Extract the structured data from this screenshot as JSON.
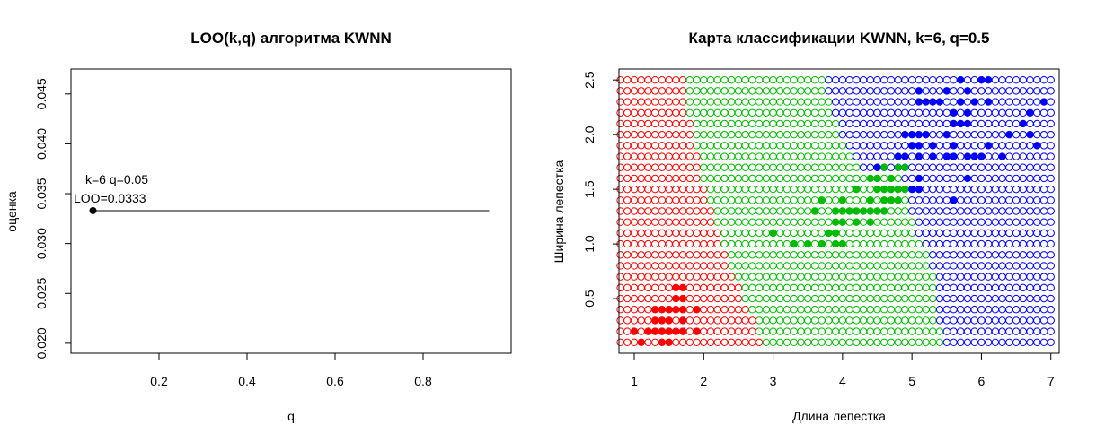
{
  "chart_data": [
    {
      "type": "line",
      "title": "LOO(k,q) алгоритма KWNN",
      "xlabel": "q",
      "ylabel": "оценка",
      "xlim": [
        0.0,
        1.0
      ],
      "ylim": [
        0.019,
        0.0475
      ],
      "x_ticks": [
        "0.2",
        "0.4",
        "0.6",
        "0.8"
      ],
      "y_ticks": [
        "0.020",
        "0.025",
        "0.030",
        "0.035",
        "0.040",
        "0.045"
      ],
      "series": [
        {
          "x": [
            0.05,
            0.95
          ],
          "y": [
            0.0333,
            0.0333
          ]
        }
      ],
      "highlight_point": {
        "x": 0.05,
        "y": 0.0333
      },
      "annotation": [
        "k=6 q=0.05",
        "LOO=0.0333"
      ]
    },
    {
      "type": "scatter",
      "title": "Карта классификации KWNN, k=6, q=0.5",
      "xlabel": "Длина лепестка",
      "ylabel": "Ширина лепестка",
      "xlim": [
        0.78,
        7.12
      ],
      "ylim": [
        0.0,
        2.6
      ],
      "x_ticks": [
        "1",
        "2",
        "3",
        "4",
        "5",
        "6",
        "7"
      ],
      "y_ticks": [
        "0.5",
        "1.0",
        "1.5",
        "2.0",
        "2.5"
      ],
      "grid": {
        "x_from": 0.8,
        "x_to": 7.0,
        "x_step": 0.1,
        "y_from": 0.1,
        "y_to": 2.5,
        "y_step": 0.1
      },
      "class_colors": {
        "setosa": "#ff0000",
        "versicolor": "#00bb00",
        "virginica": "#0000ff"
      },
      "map_note": "open circles on a grid are colored by predicted class; filled dots are the training points",
      "boundaries": [
        {
          "y": 0.1,
          "sv": 2.85,
          "vv": 5.45
        },
        {
          "y": 0.2,
          "sv": 2.8,
          "vv": 5.45
        },
        {
          "y": 0.3,
          "sv": 2.75,
          "vv": 5.4
        },
        {
          "y": 0.4,
          "sv": 2.7,
          "vv": 5.4
        },
        {
          "y": 0.5,
          "sv": 2.6,
          "vv": 5.35
        },
        {
          "y": 0.6,
          "sv": 2.55,
          "vv": 5.35
        },
        {
          "y": 0.7,
          "sv": 2.5,
          "vv": 5.35
        },
        {
          "y": 0.8,
          "sv": 2.4,
          "vv": 5.3
        },
        {
          "y": 0.9,
          "sv": 2.35,
          "vv": 5.25
        },
        {
          "y": 1.0,
          "sv": 2.3,
          "vv": 5.15
        },
        {
          "y": 1.1,
          "sv": 2.25,
          "vv": 5.1
        },
        {
          "y": 1.2,
          "sv": 2.2,
          "vv": 5.05
        },
        {
          "y": 1.3,
          "sv": 2.15,
          "vv": 5.0
        },
        {
          "y": 1.4,
          "sv": 2.1,
          "vv": 4.95
        },
        {
          "y": 1.5,
          "sv": 2.05,
          "vv": 4.95
        },
        {
          "y": 1.6,
          "sv": 2.0,
          "vv": 4.85
        },
        {
          "y": 1.7,
          "sv": 1.95,
          "vv": 4.3
        },
        {
          "y": 1.8,
          "sv": 1.95,
          "vv": 4.2
        },
        {
          "y": 1.9,
          "sv": 1.9,
          "vv": 4.1
        },
        {
          "y": 2.0,
          "sv": 1.85,
          "vv": 4.0
        },
        {
          "y": 2.1,
          "sv": 1.85,
          "vv": 3.95
        },
        {
          "y": 2.2,
          "sv": 1.8,
          "vv": 3.9
        },
        {
          "y": 2.3,
          "sv": 1.8,
          "vv": 3.85
        },
        {
          "y": 2.4,
          "sv": 1.75,
          "vv": 3.8
        },
        {
          "y": 2.5,
          "sv": 1.75,
          "vv": 3.75
        }
      ],
      "training_points": [
        {
          "class": "setosa",
          "points": [
            [
              1.1,
              0.1
            ],
            [
              1.4,
              0.1
            ],
            [
              1.5,
              0.1
            ],
            [
              1.0,
              0.2
            ],
            [
              1.2,
              0.2
            ],
            [
              1.3,
              0.2
            ],
            [
              1.4,
              0.2
            ],
            [
              1.5,
              0.2
            ],
            [
              1.6,
              0.2
            ],
            [
              1.7,
              0.2
            ],
            [
              1.9,
              0.2
            ],
            [
              1.3,
              0.3
            ],
            [
              1.4,
              0.3
            ],
            [
              1.5,
              0.3
            ],
            [
              1.7,
              0.3
            ],
            [
              1.3,
              0.4
            ],
            [
              1.4,
              0.4
            ],
            [
              1.5,
              0.4
            ],
            [
              1.6,
              0.4
            ],
            [
              1.7,
              0.4
            ],
            [
              1.9,
              0.4
            ],
            [
              1.6,
              0.5
            ],
            [
              1.7,
              0.5
            ],
            [
              1.6,
              0.6
            ],
            [
              1.7,
              0.6
            ]
          ]
        },
        {
          "class": "versicolor",
          "points": [
            [
              3.0,
              1.1
            ],
            [
              3.3,
              1.0
            ],
            [
              3.5,
              1.0
            ],
            [
              3.7,
              1.0
            ],
            [
              3.9,
              1.0
            ],
            [
              4.0,
              1.0
            ],
            [
              3.9,
              1.1
            ],
            [
              3.8,
              1.1
            ],
            [
              3.5,
              1.0
            ],
            [
              3.6,
              1.3
            ],
            [
              3.9,
              1.2
            ],
            [
              4.0,
              1.2
            ],
            [
              4.2,
              1.2
            ],
            [
              4.4,
              1.2
            ],
            [
              3.9,
              1.3
            ],
            [
              4.0,
              1.3
            ],
            [
              4.1,
              1.3
            ],
            [
              4.2,
              1.3
            ],
            [
              4.3,
              1.3
            ],
            [
              4.4,
              1.3
            ],
            [
              4.5,
              1.3
            ],
            [
              4.6,
              1.3
            ],
            [
              4.7,
              1.4
            ],
            [
              3.7,
              1.4
            ],
            [
              4.0,
              1.4
            ],
            [
              4.4,
              1.4
            ],
            [
              4.6,
              1.4
            ],
            [
              4.7,
              1.4
            ],
            [
              4.8,
              1.4
            ],
            [
              4.5,
              1.5
            ],
            [
              4.6,
              1.5
            ],
            [
              4.7,
              1.5
            ],
            [
              4.9,
              1.5
            ],
            [
              4.2,
              1.5
            ],
            [
              4.4,
              1.6
            ],
            [
              4.5,
              1.6
            ],
            [
              4.7,
              1.6
            ],
            [
              4.8,
              1.7
            ],
            [
              4.8,
              1.8
            ],
            [
              4.5,
              1.7
            ],
            [
              4.6,
              1.7
            ],
            [
              4.7,
              1.6
            ],
            [
              4.9,
              1.7
            ],
            [
              4.8,
              1.5
            ]
          ]
        },
        {
          "class": "virginica",
          "points": [
            [
              5.0,
              1.5
            ],
            [
              5.1,
              1.5
            ],
            [
              5.1,
              1.6
            ],
            [
              5.8,
              1.6
            ],
            [
              5.6,
              1.4
            ],
            [
              4.5,
              1.7
            ],
            [
              4.8,
              1.8
            ],
            [
              4.9,
              1.8
            ],
            [
              5.1,
              1.8
            ],
            [
              5.3,
              1.8
            ],
            [
              5.5,
              1.8
            ],
            [
              5.6,
              1.8
            ],
            [
              5.8,
              1.8
            ],
            [
              5.9,
              1.8
            ],
            [
              6.0,
              1.8
            ],
            [
              6.3,
              1.8
            ],
            [
              5.0,
              1.9
            ],
            [
              5.1,
              1.9
            ],
            [
              5.3,
              1.9
            ],
            [
              5.6,
              1.9
            ],
            [
              6.1,
              1.9
            ],
            [
              6.8,
              1.9
            ],
            [
              4.9,
              2.0
            ],
            [
              5.0,
              2.0
            ],
            [
              5.1,
              2.0
            ],
            [
              5.2,
              2.0
            ],
            [
              5.5,
              2.0
            ],
            [
              6.4,
              2.0
            ],
            [
              6.7,
              2.0
            ],
            [
              5.6,
              2.1
            ],
            [
              5.7,
              2.1
            ],
            [
              5.8,
              2.1
            ],
            [
              6.6,
              2.1
            ],
            [
              5.6,
              2.2
            ],
            [
              5.8,
              2.2
            ],
            [
              6.7,
              2.2
            ],
            [
              5.1,
              2.3
            ],
            [
              5.2,
              2.3
            ],
            [
              5.3,
              2.3
            ],
            [
              5.4,
              2.3
            ],
            [
              5.7,
              2.3
            ],
            [
              5.9,
              2.3
            ],
            [
              6.1,
              2.3
            ],
            [
              6.9,
              2.3
            ],
            [
              5.1,
              2.4
            ],
            [
              5.5,
              2.4
            ],
            [
              5.8,
              2.4
            ],
            [
              5.7,
              2.5
            ],
            [
              6.0,
              2.5
            ],
            [
              6.1,
              2.5
            ]
          ]
        }
      ]
    }
  ]
}
